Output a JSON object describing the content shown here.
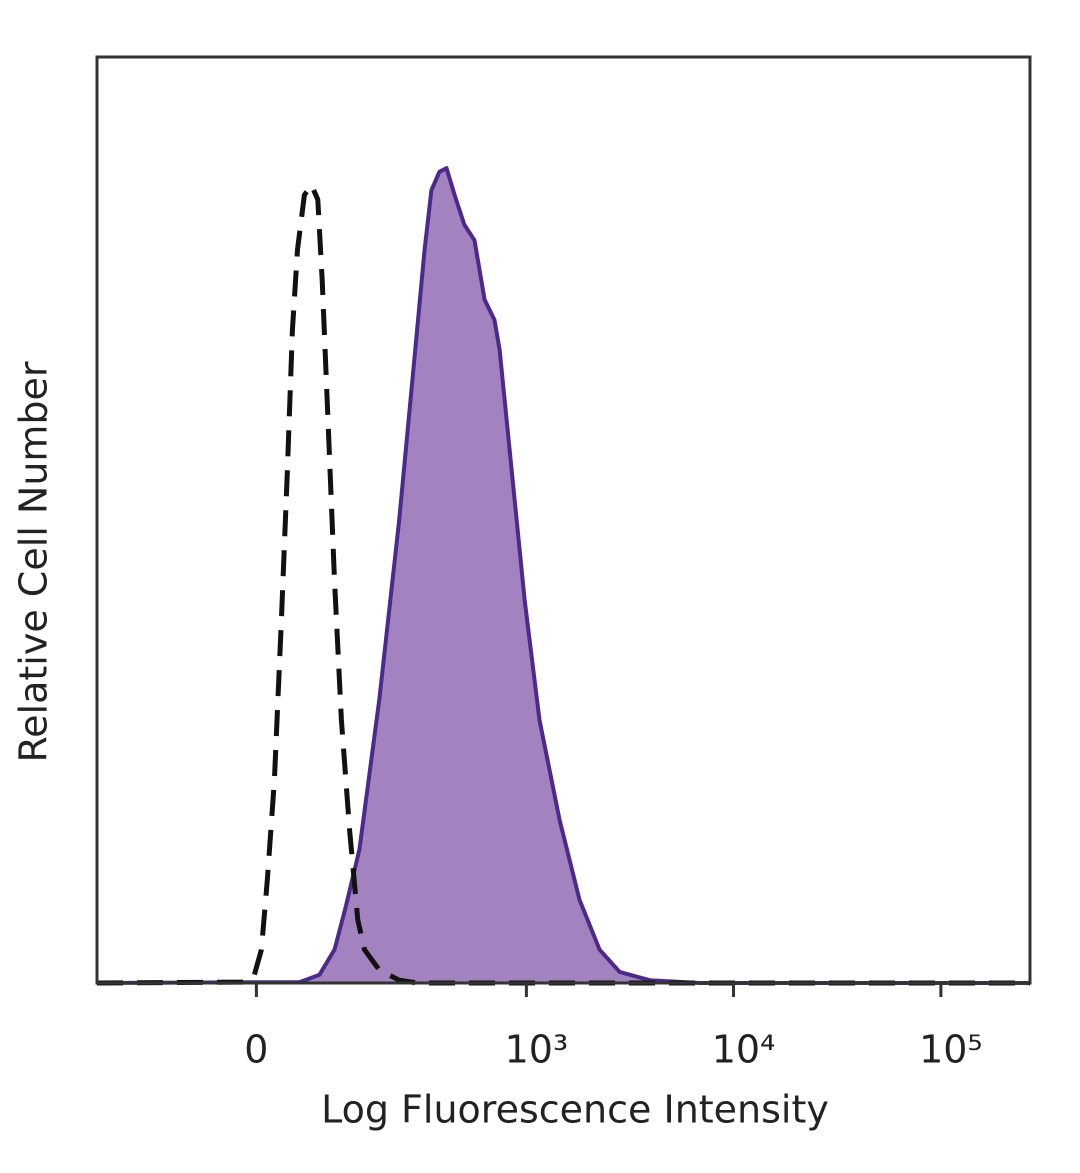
{
  "chart_data": {
    "type": "histogram-overlay",
    "x_label": "Log Fluorescence Intensity",
    "y_label": "Relative Cell Number",
    "xscale": "biexponential",
    "xlim": [
      -285,
      269000
    ],
    "ylim": [
      0,
      100
    ],
    "xticks": [
      0,
      {
        "value": 1000,
        "label": "10³"
      },
      {
        "value": 10000,
        "label": "10⁴"
      },
      {
        "value": 100000,
        "label": "10⁵"
      }
    ],
    "series": [
      {
        "color": "#4b2a8c",
        "fill": "#a383bf",
        "dashed": false,
        "x": [
          -285,
          50,
          76,
          98,
          115,
          141,
          183,
          234,
          280,
          316,
          342,
          375,
          407,
          446,
          498,
          559,
          626,
          700,
          741,
          829,
          980,
          1158,
          1448,
          1807,
          2260,
          2820,
          3940,
          6860,
          269000
        ],
        "values": [
          0,
          0.1,
          0.9,
          3.6,
          7.9,
          14.4,
          30.6,
          50,
          67.3,
          79.2,
          85.6,
          87.6,
          88,
          85.1,
          81.9,
          80.2,
          73.8,
          71.6,
          68.4,
          57.6,
          41.4,
          28.4,
          17.6,
          9,
          3.6,
          1.2,
          0.3,
          0,
          0
        ]
      },
      {
        "color": "#111111",
        "dashed": true,
        "x": [
          -285,
          -13.4,
          -2.2,
          5.6,
          12.2,
          20.1,
          28.1,
          35.1,
          41.1,
          47.2,
          55.9,
          65,
          73.6,
          79.7,
          88.1,
          98,
          109,
          123,
          138,
          151,
          183,
          234,
          291,
          269000
        ],
        "values": [
          0,
          0.1,
          0.9,
          3.6,
          11.1,
          21.9,
          39.2,
          55.4,
          70.5,
          79.2,
          85.1,
          86.2,
          84.6,
          75.9,
          60.8,
          43.5,
          28.4,
          16.5,
          6.8,
          3.6,
          1.4,
          0.3,
          0,
          0
        ]
      }
    ]
  }
}
